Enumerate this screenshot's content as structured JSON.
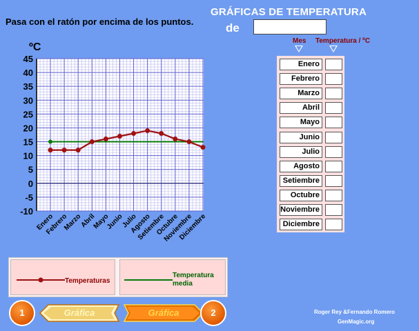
{
  "instruction": "Pasa con el ratón por encima de los puntos.",
  "title": "GRÁFICAS DE TEMPERATURA",
  "de_label": "de",
  "city_input": {
    "value": ""
  },
  "unit_label": "ºC",
  "table": {
    "header_month": "Mes",
    "header_temp": "Temperatura / ºC",
    "months": [
      "Enero",
      "Febrero",
      "Marzo",
      "Abril",
      "Mayo",
      "Junio",
      "Julio",
      "Agosto",
      "Setiembre",
      "Octubre",
      "Noviembre",
      "Diciembre"
    ]
  },
  "legend": {
    "temperatures": "Temperaturas",
    "average_line1": "Temperatura",
    "average_line2": "media"
  },
  "nav": {
    "prev_number": "1",
    "next_number": "2",
    "prev_label": "Gráfica",
    "next_label": "Gráfica"
  },
  "credits": {
    "authors": "Roger Rey &Fernando Romero",
    "site": "GenMagic.org"
  },
  "colors": {
    "background": "#6f9cf0",
    "temperature_line": "#a01010",
    "average_line": "#0a7a0a",
    "grid": "#6060d0"
  },
  "chart_data": {
    "type": "line",
    "categories": [
      "Enero",
      "Febrero",
      "Marzo",
      "Abril",
      "Mayo",
      "Junio",
      "Julio",
      "Agosto",
      "Setiembre",
      "Octubre",
      "Noviembre",
      "Diciembre"
    ],
    "series": [
      {
        "name": "Temperaturas",
        "values": [
          12,
          12,
          12,
          15,
          16,
          17,
          18,
          19,
          18,
          16,
          15,
          13
        ]
      },
      {
        "name": "Temperatura media",
        "values": [
          15,
          15,
          15,
          15,
          15,
          15,
          15,
          15,
          15,
          15,
          15,
          15
        ]
      }
    ],
    "yticks": [
      45,
      40,
      35,
      30,
      25,
      20,
      15,
      10,
      5,
      0,
      -5,
      -10
    ],
    "ylim": [
      -10,
      45
    ],
    "ylabel": "ºC",
    "grid": true
  }
}
